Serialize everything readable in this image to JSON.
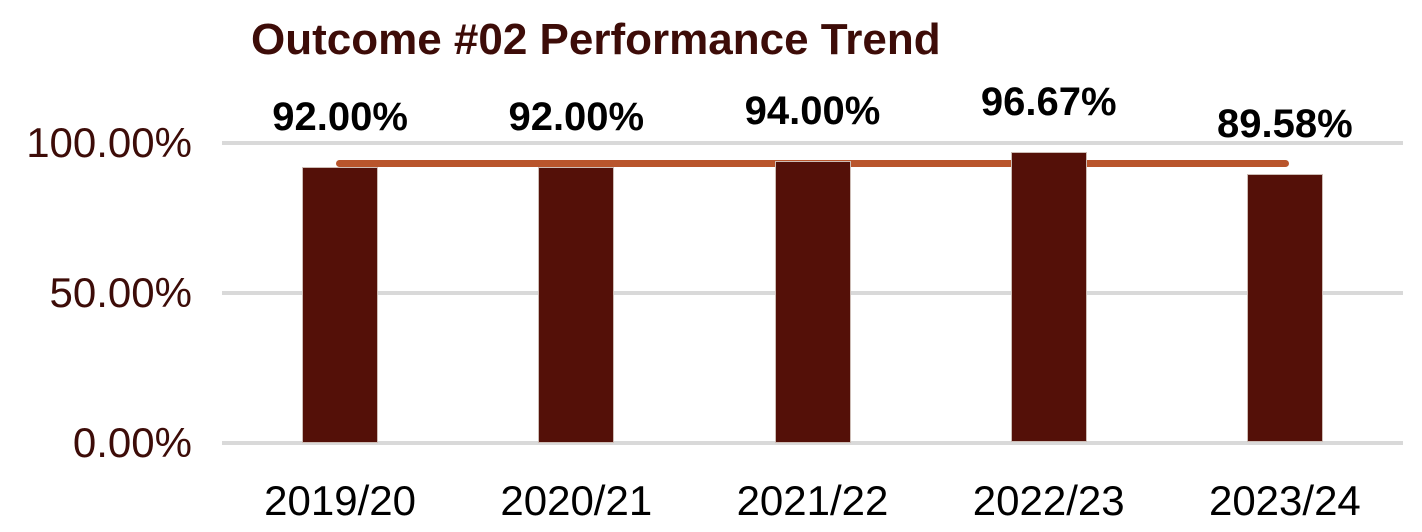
{
  "chart_data": {
    "type": "bar",
    "title": "Outcome #02 Performance Trend",
    "categories": [
      "2019/20",
      "2020/21",
      "2021/22",
      "2022/23",
      "2023/24"
    ],
    "series": [
      {
        "name": "performance",
        "type": "bar",
        "values": [
          92.0,
          92.0,
          94.0,
          96.67,
          89.58
        ]
      },
      {
        "name": "trendline",
        "type": "line",
        "value": 92.85
      }
    ],
    "data_labels": [
      "92.00%",
      "92.00%",
      "94.00%",
      "96.67%",
      "89.58%"
    ],
    "y_ticks": [
      {
        "value": 100,
        "label": "100.00%"
      },
      {
        "value": 50,
        "label": "50.00%"
      },
      {
        "value": 0,
        "label": "0.00%"
      }
    ],
    "ylim": [
      0,
      100
    ],
    "xlabel": "",
    "ylabel": "",
    "grid": true,
    "legend": false
  },
  "colors": {
    "background": "#ffffff",
    "bar_fill": "#541008",
    "bar_border": "#cdbdb6",
    "trendline": "#b9552c",
    "gridline": "#d9d9d9",
    "title_text": "#3d0c08",
    "y_tick_text": "#3d0c08",
    "x_tick_text": "#000000",
    "data_label_text": "#000000"
  }
}
